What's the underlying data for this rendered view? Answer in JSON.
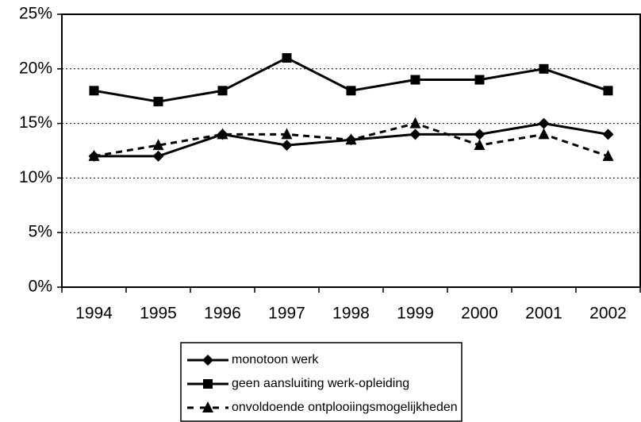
{
  "chart_data": {
    "type": "line",
    "categories": [
      "1994",
      "1995",
      "1996",
      "1997",
      "1998",
      "1999",
      "2000",
      "2001",
      "2002"
    ],
    "series": [
      {
        "name": "monotoon werk",
        "color": "#000000",
        "marker": "diamond",
        "dashed": false,
        "values": [
          12,
          12,
          14,
          13,
          13.5,
          14,
          14,
          15,
          14
        ]
      },
      {
        "name": "geen aansluiting werk-opleiding",
        "color": "#000000",
        "marker": "square",
        "dashed": false,
        "values": [
          18,
          17,
          18,
          21,
          18,
          19,
          19,
          20,
          18
        ]
      },
      {
        "name": "onvoldoende ontplooiingsmogelijkheden",
        "color": "#000000",
        "marker": "triangle",
        "dashed": true,
        "values": [
          12,
          13,
          14,
          14,
          13.5,
          15,
          13,
          14,
          12
        ]
      }
    ],
    "ylim": [
      0,
      25
    ],
    "yticks": [
      {
        "value": 0,
        "label": "0%"
      },
      {
        "value": 5,
        "label": "5%"
      },
      {
        "value": 10,
        "label": "10%"
      },
      {
        "value": 15,
        "label": "15%"
      },
      {
        "value": 20,
        "label": "20%"
      },
      {
        "value": 25,
        "label": "25%"
      }
    ],
    "grid": true,
    "legend": "bottom"
  }
}
